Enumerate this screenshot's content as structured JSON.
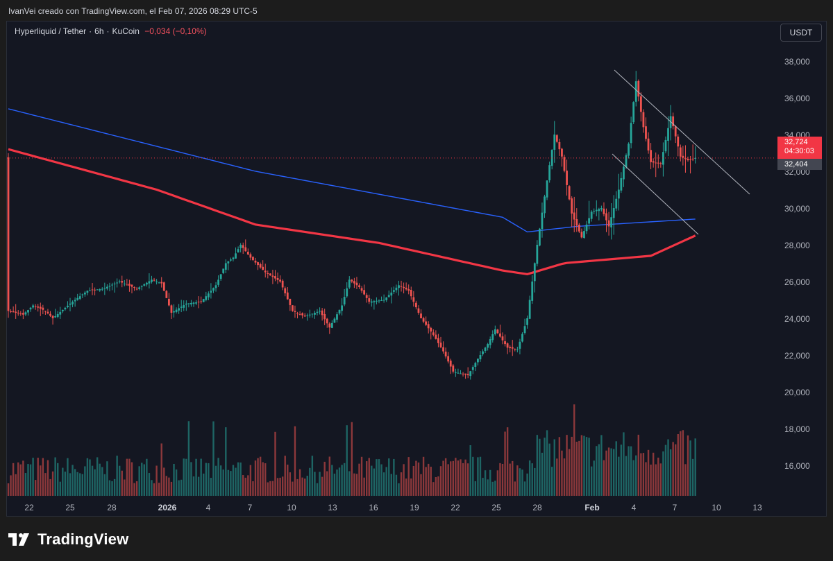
{
  "header": {
    "attribution": "IvanVei creado con TradingView.com, el Feb 07, 2026 08:29 UTC-5"
  },
  "legend": {
    "symbol": "Hyperliquid / Tether",
    "interval": "6h",
    "exchange": "KuCoin",
    "change": "−0,034 (−0,10%)"
  },
  "currency_button": "USDT",
  "price_scale": {
    "ticks": [
      "38,000",
      "36,000",
      "34,000",
      "32,000",
      "30,000",
      "28,000",
      "26,000",
      "24,000",
      "22,000",
      "20,000",
      "18,000",
      "16,000"
    ]
  },
  "last_price_badge": {
    "price": "32,724",
    "countdown": "04:30:03",
    "color": "#f23645"
  },
  "second_badge": {
    "price": "32,404",
    "color": "#434651"
  },
  "x_axis": {
    "ticks": [
      "22",
      "25",
      "28",
      "2026",
      "4",
      "7",
      "10",
      "13",
      "16",
      "19",
      "22",
      "25",
      "28",
      "Feb",
      "4",
      "7",
      "10",
      "13"
    ]
  },
  "footer": {
    "brand": "TradingView"
  },
  "colors": {
    "up": "#26a69a",
    "down": "#ef5350",
    "ma_blue": "#2962ff",
    "ma_red": "#f23645",
    "background": "#141722"
  },
  "chart_data": {
    "type": "candlestick",
    "ylim": [
      14500,
      39000
    ],
    "keypoints_close": [
      [
        0,
        24400
      ],
      [
        6,
        24200
      ],
      [
        10,
        24700
      ],
      [
        15,
        24400
      ],
      [
        18,
        24000
      ],
      [
        25,
        24800
      ],
      [
        32,
        25500
      ],
      [
        38,
        25600
      ],
      [
        45,
        26000
      ],
      [
        52,
        25600
      ],
      [
        58,
        26100
      ],
      [
        62,
        25900
      ],
      [
        66,
        24300
      ],
      [
        72,
        24800
      ],
      [
        78,
        24900
      ],
      [
        84,
        25800
      ],
      [
        88,
        27000
      ],
      [
        91,
        27300
      ],
      [
        94,
        28000
      ],
      [
        98,
        27300
      ],
      [
        104,
        26500
      ],
      [
        110,
        26000
      ],
      [
        115,
        24400
      ],
      [
        120,
        24100
      ],
      [
        126,
        24400
      ],
      [
        130,
        23500
      ],
      [
        135,
        24700
      ],
      [
        138,
        26100
      ],
      [
        142,
        25700
      ],
      [
        146,
        24900
      ],
      [
        152,
        25000
      ],
      [
        158,
        25800
      ],
      [
        162,
        25500
      ],
      [
        167,
        24000
      ],
      [
        172,
        23100
      ],
      [
        176,
        22200
      ],
      [
        180,
        21100
      ],
      [
        186,
        20900
      ],
      [
        190,
        21800
      ],
      [
        194,
        22600
      ],
      [
        197,
        23400
      ],
      [
        202,
        22400
      ],
      [
        206,
        22300
      ],
      [
        210,
        24000
      ],
      [
        214,
        28000
      ],
      [
        218,
        31500
      ],
      [
        221,
        34000
      ],
      [
        224,
        32800
      ],
      [
        228,
        29700
      ],
      [
        232,
        28400
      ],
      [
        236,
        29800
      ],
      [
        240,
        30000
      ],
      [
        243,
        29000
      ],
      [
        247,
        31000
      ],
      [
        251,
        33500
      ],
      [
        254,
        36900
      ],
      [
        257,
        34400
      ],
      [
        260,
        32500
      ],
      [
        264,
        32400
      ],
      [
        268,
        35000
      ],
      [
        272,
        32800
      ],
      [
        275,
        32600
      ],
      [
        278,
        32724
      ]
    ],
    "ma_blue": [
      [
        0,
        35400
      ],
      [
        100,
        32000
      ],
      [
        200,
        29500
      ],
      [
        210,
        28700
      ],
      [
        230,
        29000
      ],
      [
        278,
        29400
      ]
    ],
    "ma_red": [
      [
        0,
        33200
      ],
      [
        60,
        31000
      ],
      [
        100,
        29100
      ],
      [
        150,
        28100
      ],
      [
        200,
        26600
      ],
      [
        210,
        26400
      ],
      [
        225,
        27000
      ],
      [
        260,
        27400
      ],
      [
        278,
        28500
      ]
    ],
    "trendlines": [
      {
        "from": [
          "Feb 2",
          37400
        ],
        "to": [
          "Feb 10",
          30800
        ]
      },
      {
        "from": [
          "Feb 2",
          32500
        ],
        "to": [
          "Feb 8",
          28500
        ]
      }
    ]
  }
}
